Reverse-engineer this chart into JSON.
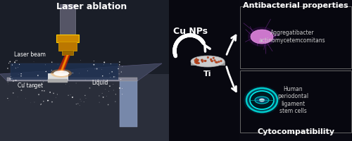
{
  "bg_color": "#080810",
  "title_laser": "Laser ablation",
  "title_antibacterial": "Antibacterial properties",
  "title_cytocompat": "Cytocompatibility",
  "label_laser_beam": "Laser beam",
  "label_cu_target": "Cu target",
  "label_liquid": "Liquid",
  "label_cu_nps": "Cu NPs",
  "label_ti": "Ti",
  "label_bacteria": "Aggregatibacter\nactinomycetemcomitans",
  "label_cells": "Human\nperiodontal\nligament\nstem cells",
  "text_color_white": "#ffffff",
  "text_color_light": "#cccccc",
  "box_border_color": "#555555",
  "arrow_color": "#ffffff",
  "bacteria_color": "#cc77cc",
  "cell_outer_color": "#00dddd",
  "cell_inner_color": "#00ffff",
  "nanoparticle_color": "#cc5522",
  "fig_width": 5.0,
  "fig_height": 2.0,
  "dpi": 100
}
